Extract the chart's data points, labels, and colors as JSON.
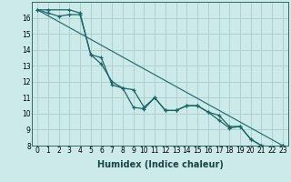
{
  "xlabel": "Humidex (Indice chaleur)",
  "bg_color": "#cceaea",
  "grid_color": "#aacccc",
  "line_color": "#1a6666",
  "line1_x": [
    0,
    1,
    2,
    3,
    4,
    5,
    6,
    7,
    8,
    9,
    10,
    11,
    12,
    13,
    14,
    15,
    16,
    17,
    18,
    19,
    20,
    21,
    22,
    23
  ],
  "line1_y": [
    16.5,
    16.3,
    16.1,
    16.2,
    16.2,
    13.7,
    13.1,
    12.0,
    11.6,
    11.5,
    10.4,
    11.0,
    10.2,
    10.2,
    10.5,
    10.5,
    10.1,
    9.9,
    9.2,
    9.2,
    8.4,
    8.0,
    7.9,
    8.0
  ],
  "line2_x": [
    0,
    1,
    3,
    4,
    5,
    6,
    7,
    8,
    9,
    10,
    11,
    12,
    13,
    14,
    15,
    16,
    17,
    18,
    19,
    20,
    21,
    22,
    23
  ],
  "line2_y": [
    16.5,
    16.5,
    16.5,
    16.3,
    13.7,
    13.5,
    11.8,
    11.6,
    10.4,
    10.3,
    11.0,
    10.2,
    10.2,
    10.5,
    10.5,
    10.1,
    9.6,
    9.1,
    9.2,
    8.4,
    8.0,
    7.9,
    8.0
  ],
  "line3_x": [
    0,
    23
  ],
  "line3_y": [
    16.5,
    8.0
  ],
  "ylim": [
    8,
    17
  ],
  "xlim": [
    -0.5,
    23.5
  ],
  "yticks": [
    8,
    9,
    10,
    11,
    12,
    13,
    14,
    15,
    16
  ],
  "xticks": [
    0,
    1,
    2,
    3,
    4,
    5,
    6,
    7,
    8,
    9,
    10,
    11,
    12,
    13,
    14,
    15,
    16,
    17,
    18,
    19,
    20,
    21,
    22,
    23
  ],
  "tick_fontsize": 5.5,
  "xlabel_fontsize": 7
}
